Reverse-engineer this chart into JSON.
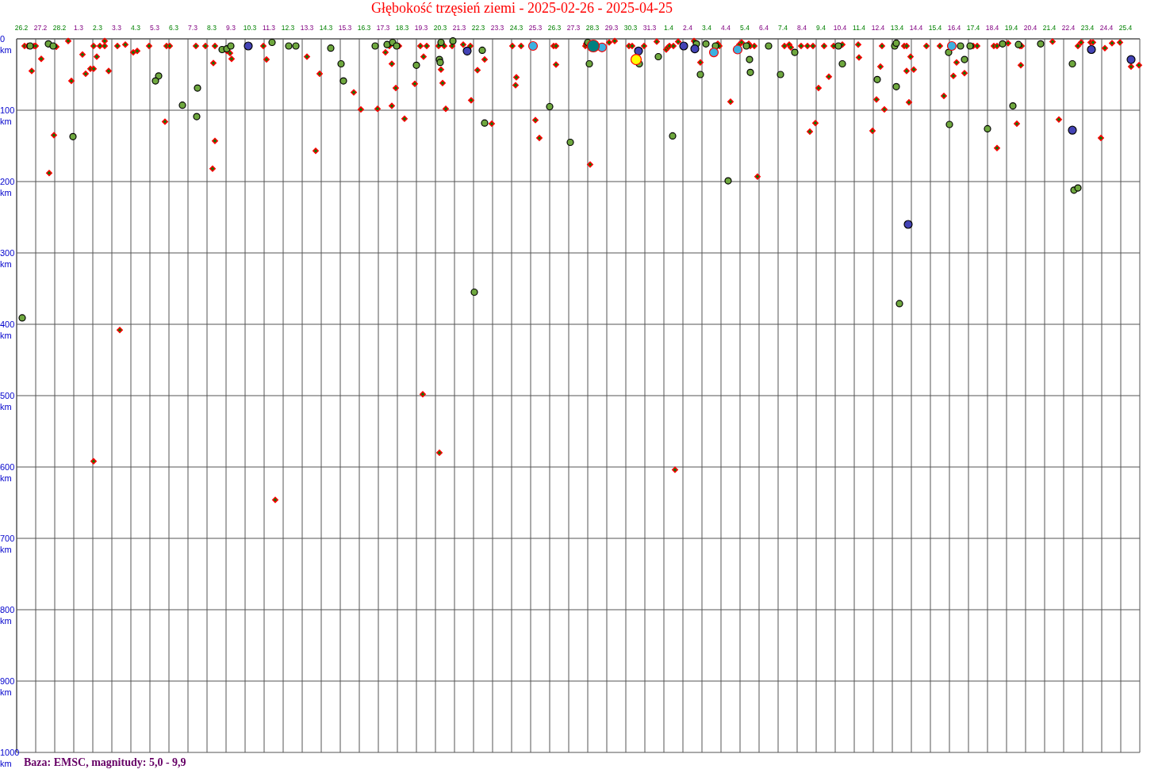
{
  "chart_data": {
    "type": "scatter",
    "title": "Głębokość trzęsień ziemi - 2025-02-26 - 2025-04-25",
    "annotations": [
      "Baza: EMSC, magnitudy: 5,0 - 9,9"
    ],
    "grid": true,
    "xlim": [
      "2025-02-26",
      "2025-04-26"
    ],
    "xticks": [
      {
        "value": "2025-02-26",
        "label": null
      },
      {
        "value": "2025-02-26T06:00",
        "label": "26.2"
      },
      {
        "value": "2025-02-27",
        "label": null
      },
      {
        "value": "2025-02-27T06:00",
        "label": "27.2"
      },
      {
        "value": "2025-02-28",
        "label": null
      },
      {
        "value": "2025-02-28T06:00",
        "label": "28.2"
      },
      {
        "value": "2025-03-01",
        "label": null
      },
      {
        "value": "2025-03-01T06:00",
        "label": "1.3"
      },
      {
        "value": "2025-03-02",
        "label": null
      },
      {
        "value": "2025-03-02T06:00",
        "label": "2.3"
      },
      {
        "value": "2025-03-03",
        "label": null
      },
      {
        "value": "2025-03-03T06:00",
        "label": "3.3"
      },
      {
        "value": "2025-03-04",
        "label": null
      },
      {
        "value": "2025-03-04T06:00",
        "label": "4.3"
      },
      {
        "value": "2025-03-05",
        "label": null
      },
      {
        "value": "2025-03-05T06:00",
        "label": "5.3"
      },
      {
        "value": "2025-03-06",
        "label": null
      },
      {
        "value": "2025-03-06T06:00",
        "label": "6.3"
      },
      {
        "value": "2025-03-07",
        "label": null
      },
      {
        "value": "2025-03-07T06:00",
        "label": "7.3"
      },
      {
        "value": "2025-03-08",
        "label": null
      },
      {
        "value": "2025-03-08T06:00",
        "label": "8.3"
      },
      {
        "value": "2025-03-09",
        "label": null
      },
      {
        "value": "2025-03-09T06:00",
        "label": "9.3"
      },
      {
        "value": "2025-03-10",
        "label": null
      },
      {
        "value": "2025-03-10T06:00",
        "label": "10.3"
      },
      {
        "value": "2025-03-11",
        "label": null
      },
      {
        "value": "2025-03-11T06:00",
        "label": "11.3"
      },
      {
        "value": "2025-03-12",
        "label": null
      },
      {
        "value": "2025-03-12T06:00",
        "label": "12.3"
      },
      {
        "value": "2025-03-13",
        "label": null
      },
      {
        "value": "2025-03-13T06:00",
        "label": "13.3"
      },
      {
        "value": "2025-03-14",
        "label": null
      },
      {
        "value": "2025-03-14T06:00",
        "label": "14.3"
      },
      {
        "value": "2025-03-15",
        "label": null
      },
      {
        "value": "2025-03-15T06:00",
        "label": "15.3"
      },
      {
        "value": "2025-03-16",
        "label": null
      },
      {
        "value": "2025-03-16T06:00",
        "label": "16.3"
      },
      {
        "value": "2025-03-17",
        "label": null
      },
      {
        "value": "2025-03-17T06:00",
        "label": "17.3"
      },
      {
        "value": "2025-03-18",
        "label": null
      },
      {
        "value": "2025-03-18T06:00",
        "label": "18.3"
      },
      {
        "value": "2025-03-19",
        "label": null
      },
      {
        "value": "2025-03-19T06:00",
        "label": "19.3"
      },
      {
        "value": "2025-03-20",
        "label": null
      },
      {
        "value": "2025-03-20T06:00",
        "label": "20.3"
      },
      {
        "value": "2025-03-21",
        "label": null
      },
      {
        "value": "2025-03-21T06:00",
        "label": "21.3"
      },
      {
        "value": "2025-03-22",
        "label": null
      },
      {
        "value": "2025-03-22T06:00",
        "label": "22.3"
      },
      {
        "value": "2025-03-23",
        "label": null
      },
      {
        "value": "2025-03-23T06:00",
        "label": "23.3"
      },
      {
        "value": "2025-03-24",
        "label": null
      },
      {
        "value": "2025-03-24T06:00",
        "label": "24.3"
      },
      {
        "value": "2025-03-25",
        "label": null
      },
      {
        "value": "2025-03-25T06:00",
        "label": "25.3"
      },
      {
        "value": "2025-03-26",
        "label": null
      },
      {
        "value": "2025-03-26T06:00",
        "label": "26.3"
      },
      {
        "value": "2025-03-27",
        "label": null
      },
      {
        "value": "2025-03-27T06:00",
        "label": "27.3"
      },
      {
        "value": "2025-03-28",
        "label": null
      },
      {
        "value": "2025-03-28T06:00",
        "label": "28.3"
      },
      {
        "value": "2025-03-29",
        "label": null
      },
      {
        "value": "2025-03-29T06:00",
        "label": "29.3"
      },
      {
        "value": "2025-03-30",
        "label": null
      },
      {
        "value": "2025-03-30T06:00",
        "label": "30.3"
      },
      {
        "value": "2025-03-31",
        "label": null
      },
      {
        "value": "2025-03-31T06:00",
        "label": "31.3"
      },
      {
        "value": "2025-04-01",
        "label": null
      },
      {
        "value": "2025-04-01T06:00",
        "label": "1.4"
      },
      {
        "value": "2025-04-02",
        "label": null
      },
      {
        "value": "2025-04-02T06:00",
        "label": "2.4"
      },
      {
        "value": "2025-04-03",
        "label": null
      },
      {
        "value": "2025-04-03T06:00",
        "label": "3.4"
      },
      {
        "value": "2025-04-04",
        "label": null
      },
      {
        "value": "2025-04-04T06:00",
        "label": "4.4"
      },
      {
        "value": "2025-04-05",
        "label": null
      },
      {
        "value": "2025-04-05T06:00",
        "label": "5.4"
      },
      {
        "value": "2025-04-06",
        "label": null
      },
      {
        "value": "2025-04-06T06:00",
        "label": "6.4"
      },
      {
        "value": "2025-04-07",
        "label": null
      },
      {
        "value": "2025-04-07T06:00",
        "label": "7.4"
      },
      {
        "value": "2025-04-08",
        "label": null
      },
      {
        "value": "2025-04-08T06:00",
        "label": "8.4"
      },
      {
        "value": "2025-04-09",
        "label": null
      },
      {
        "value": "2025-04-09T06:00",
        "label": "9.4"
      },
      {
        "value": "2025-04-10",
        "label": null
      },
      {
        "value": "2025-04-10T06:00",
        "label": "10.4"
      },
      {
        "value": "2025-04-11",
        "label": null
      },
      {
        "value": "2025-04-11T06:00",
        "label": "11.4"
      },
      {
        "value": "2025-04-12",
        "label": null
      },
      {
        "value": "2025-04-12T06:00",
        "label": "12.4"
      },
      {
        "value": "2025-04-13",
        "label": null
      },
      {
        "value": "2025-04-13T06:00",
        "label": "13.4"
      },
      {
        "value": "2025-04-14",
        "label": null
      },
      {
        "value": "2025-04-14T06:00",
        "label": "14.4"
      },
      {
        "value": "2025-04-15",
        "label": null
      },
      {
        "value": "2025-04-15T06:00",
        "label": "15.4"
      },
      {
        "value": "2025-04-16",
        "label": null
      },
      {
        "value": "2025-04-16T06:00",
        "label": "16.4"
      },
      {
        "value": "2025-04-17",
        "label": null
      },
      {
        "value": "2025-04-17T06:00",
        "label": "17.4"
      },
      {
        "value": "2025-04-18",
        "label": null
      },
      {
        "value": "2025-04-18T06:00",
        "label": "18.4"
      },
      {
        "value": "2025-04-19",
        "label": null
      },
      {
        "value": "2025-04-19T06:00",
        "label": "19.4"
      },
      {
        "value": "2025-04-20",
        "label": null
      },
      {
        "value": "2025-04-20T06:00",
        "label": "20.4"
      },
      {
        "value": "2025-04-21",
        "label": null
      },
      {
        "value": "2025-04-21T06:00",
        "label": "21.4"
      },
      {
        "value": "2025-04-22",
        "label": null
      },
      {
        "value": "2025-04-22T06:00",
        "label": "22.4"
      },
      {
        "value": "2025-04-23",
        "label": null
      },
      {
        "value": "2025-04-23T06:00",
        "label": "23.4"
      },
      {
        "value": "2025-04-24",
        "label": null
      },
      {
        "value": "2025-04-24T06:00",
        "label": "24.4"
      },
      {
        "value": "2025-04-25",
        "label": null
      },
      {
        "value": "2025-04-25T06:00",
        "label": "25.4"
      },
      {
        "value": "2025-04-26",
        "label": null
      }
    ],
    "ylim": [
      1000,
      0
    ],
    "yticks": [
      {
        "value": 0,
        "label": "0 km"
      },
      {
        "value": 100,
        "label": "100 km"
      },
      {
        "value": 200,
        "label": "200 km"
      },
      {
        "value": 300,
        "label": "300 km"
      },
      {
        "value": 400,
        "label": "400 km"
      },
      {
        "value": 500,
        "label": "500 km"
      },
      {
        "value": 600,
        "label": "600 km"
      },
      {
        "value": 700,
        "label": "700 km"
      },
      {
        "value": 800,
        "label": "800 km"
      },
      {
        "value": 900,
        "label": "900 km"
      },
      {
        "value": 1000,
        "label": "1000 km"
      }
    ],
    "series": [
      {
        "color": "#008000",
        "marker": "diamond",
        "x": [
          "2025-02-26T10:00",
          "2025-02-26T14:00",
          "2025-02-26T22:00",
          "2025-02-27T00:00",
          "2025-02-26T19:00",
          "2025-02-27T07:00",
          "2025-02-28T02:00",
          "2025-02-27T23:00",
          "2025-02-27T17:00",
          "2025-02-28T17:00",
          "2025-02-28T21:00",
          "2025-03-01T11:00",
          "2025-03-01T15:00",
          "2025-03-01T21:00",
          "2025-03-02T01:00",
          "2025-03-02T01:00",
          "2025-03-02T05:00",
          "2025-03-02T09:00",
          "2025-03-02T15:00",
          "2025-03-02T15:00",
          "2025-03-02T20:00",
          "2025-03-02T01:00",
          "2025-03-03T07:00",
          "2025-03-03T17:00",
          "2025-03-03T10:00",
          "2025-03-04T03:00",
          "2025-03-04T08:00",
          "2025-03-04T23:00",
          "2025-03-05T19:00",
          "2025-03-05T21:00",
          "2025-03-06T01:00",
          "2025-03-07T10:00",
          "2025-03-07T22:00",
          "2025-03-08T10:00",
          "2025-03-08T08:00",
          "2025-03-08T10:00",
          "2025-03-08T07:00",
          "2025-03-09T01:00",
          "2025-03-09T05:00",
          "2025-03-09T07:00",
          "2025-03-10T23:00",
          "2025-03-11T03:00",
          "2025-03-11T14:00",
          "2025-03-13T06:00",
          "2025-03-13T17:00",
          "2025-03-13T22:00",
          "2025-03-15T17:00",
          "2025-03-16T02:00",
          "2025-03-16T23:00",
          "2025-03-17T14:00",
          "2025-03-17T09:00",
          "2025-03-17T17:00",
          "2025-03-17T17:00",
          "2025-03-18T02:00",
          "2025-03-17T22:00",
          "2025-03-18T09:00",
          "2025-03-19T05:00",
          "2025-03-19T13:00",
          "2025-03-19T09:00",
          "2025-03-18T22:00",
          "2025-03-19T08:00",
          "2025-03-20T04:00",
          "2025-03-20T11:00",
          "2025-03-20T07:00",
          "2025-03-20T09:00",
          "2025-03-20T13:00",
          "2025-03-20T05:00",
          "2025-03-20T21:00",
          "2025-03-21T11:00",
          "2025-03-21T20:00",
          "2025-03-21T21:00",
          "2025-03-22T14:00",
          "2025-03-22T05:00",
          "2025-03-22T23:00",
          "2025-03-24T01:00",
          "2025-03-24T12:00",
          "2025-03-24T06:00",
          "2025-03-24T05:00",
          "2025-03-25T06:00",
          "2025-03-25T11:00",
          "2025-03-26T05:00",
          "2025-03-26T08:00",
          "2025-03-26T08:00",
          "2025-03-27T21:00",
          "2025-03-27T22:00",
          "2025-03-28T03:00",
          "2025-03-29T03:00",
          "2025-03-29T10:00",
          "2025-03-30T04:00",
          "2025-03-30T08:00",
          "2025-03-30T23:00",
          "2025-03-31T15:00",
          "2025-04-01T03:00",
          "2025-04-01T05:00",
          "2025-04-01T07:00",
          "2025-04-01T12:00",
          "2025-04-01T14:00",
          "2025-04-01T18:00",
          "2025-04-02T14:00",
          "2025-04-02T22:00",
          "2025-04-03T20:00",
          "2025-04-03T22:00",
          "2025-04-04T12:00",
          "2025-04-04T23:00",
          "2025-04-05T02:00",
          "2025-04-05T11:00",
          "2025-04-05T13:00",
          "2025-04-05T18:00",
          "2025-04-05T22:00",
          "2025-04-07T08:00",
          "2025-04-07T14:00",
          "2025-04-07T16:00",
          "2025-04-08T05:00",
          "2025-04-08T13:00",
          "2025-04-08T20:00",
          "2025-04-08T16:00",
          "2025-04-08T23:00",
          "2025-04-09T03:00",
          "2025-04-09T10:00",
          "2025-04-09T16:00",
          "2025-04-09T22:00",
          "2025-04-10T06:00",
          "2025-04-10T09:00",
          "2025-04-11T05:00",
          "2025-04-11T06:00",
          "2025-04-11T23:00",
          "2025-04-12T04:00",
          "2025-04-12T09:00",
          "2025-04-12T11:00",
          "2025-04-12T14:00",
          "2025-04-13T15:00",
          "2025-04-13T18:00",
          "2025-04-13T18:00",
          "2025-04-13T21:00",
          "2025-04-13T23:00",
          "2025-04-14T03:00",
          "2025-04-14T19:00",
          "2025-04-15T12:00",
          "2025-04-15T17:00",
          "2025-04-16T05:00",
          "2025-04-16T09:00",
          "2025-04-16T19:00",
          "2025-04-17T06:00",
          "2025-04-17T11:00",
          "2025-04-18T08:00",
          "2025-04-18T12:00",
          "2025-04-18T12:00",
          "2025-04-19T02:00",
          "2025-04-19T13:00",
          "2025-04-19T17:00",
          "2025-04-19T19:00",
          "2025-04-19T18:00",
          "2025-04-21T10:00",
          "2025-04-21T18:00",
          "2025-04-22T18:00",
          "2025-04-22T22:00",
          "2025-04-23T10:00",
          "2025-04-23T13:00",
          "2025-04-24T04:00",
          "2025-04-24T13:00",
          "2025-04-24T23:00",
          "2025-04-23T23:00",
          "2025-04-25T13:00",
          "2025-04-25T23:00"
        ],
        "values": [
          10,
          10,
          10,
          10,
          45,
          28,
          11,
          135,
          188,
          3,
          59,
          22,
          49,
          42,
          42,
          10,
          25,
          10,
          3,
          10,
          45,
          592,
          10,
          8,
          408,
          19,
          17,
          10,
          116,
          10,
          10,
          10,
          10,
          10,
          34,
          143,
          182,
          17,
          20,
          28,
          10,
          29,
          646,
          25,
          157,
          49,
          75,
          99,
          98,
          10,
          19,
          35,
          94,
          10,
          69,
          112,
          10,
          10,
          25,
          63,
          498,
          10,
          10,
          43,
          62,
          98,
          580,
          10,
          8,
          10,
          86,
          29,
          44,
          119,
          10,
          10,
          54,
          65,
          114,
          139,
          10,
          10,
          36,
          10,
          7,
          176,
          5,
          3,
          10,
          10,
          10,
          4,
          15,
          12,
          10,
          10,
          604,
          4,
          3,
          33,
          7,
          10,
          88,
          8,
          5,
          7,
          10,
          10,
          193,
          10,
          8,
          12,
          10,
          10,
          10,
          130,
          118,
          69,
          10,
          53,
          10,
          10,
          8,
          8,
          26,
          129,
          85,
          39,
          10,
          99,
          10,
          10,
          45,
          89,
          25,
          43,
          10,
          10,
          80,
          52,
          33,
          48,
          10,
          10,
          10,
          10,
          153,
          6,
          119,
          10,
          10,
          37,
          4,
          113,
          10,
          5,
          5,
          5,
          13,
          6,
          5,
          139,
          39,
          37
        ]
      },
      {
        "color": "#6fa83f",
        "marker": "circle",
        "x": [
          "2025-02-26T07:00",
          "2025-02-26T17:00",
          "2025-02-27T16:00",
          "2025-02-27T22:00",
          "2025-02-28T23:00",
          "2025-03-05T11:00",
          "2025-03-05T07:00",
          "2025-03-06T17:00",
          "2025-03-07T12:00",
          "2025-03-07T11:00",
          "2025-03-08T19:00",
          "2025-03-09T01:00",
          "2025-03-09T06:00",
          "2025-03-11T10:00",
          "2025-03-12T07:00",
          "2025-03-12T16:00",
          "2025-03-14T12:00",
          "2025-03-15T01:00",
          "2025-03-15T04:00",
          "2025-03-16T20:00",
          "2025-03-17T11:00",
          "2025-03-17T18:00",
          "2025-03-17T23:00",
          "2025-03-19T00:00",
          "2025-03-20T07:00",
          "2025-03-20T05:00",
          "2025-03-20T06:00",
          "2025-03-20T22:00",
          "2025-03-22T01:00",
          "2025-03-22T11:00",
          "2025-03-22T14:00",
          "2025-03-26T00:00",
          "2025-03-27T02:00",
          "2025-03-28T00:00",
          "2025-03-28T02:00",
          "2025-03-30T17:00",
          "2025-03-31T17:00",
          "2025-04-01T11:00",
          "2025-04-02T17:00",
          "2025-04-02T22:00",
          "2025-04-03T05:00",
          "2025-04-03T17:00",
          "2025-04-04T09:00",
          "2025-04-05T08:00",
          "2025-04-05T12:00",
          "2025-04-05T13:00",
          "2025-04-06T12:00",
          "2025-04-07T03:00",
          "2025-04-07T21:00",
          "2025-04-10T04:00",
          "2025-04-10T09:00",
          "2025-04-12T05:00",
          "2025-04-13T03:00",
          "2025-04-13T05:00",
          "2025-04-13T05:00",
          "2025-04-13T09:00",
          "2025-04-15T23:00",
          "2025-04-16T00:00",
          "2025-04-16T14:00",
          "2025-04-16T19:00",
          "2025-04-17T02:00",
          "2025-04-18T00:00",
          "2025-04-18T19:00",
          "2025-04-19T08:00",
          "2025-04-19T15:00",
          "2025-04-20T19:00",
          "2025-04-22T11:00",
          "2025-04-22T13:00",
          "2025-04-22T18:00"
        ],
        "values": [
          391,
          10,
          7,
          10,
          137,
          52,
          59,
          93,
          69,
          109,
          15,
          14,
          10,
          5,
          10,
          10,
          13,
          35,
          59,
          10,
          8,
          5,
          10,
          37,
          5,
          29,
          33,
          3,
          355,
          16,
          118,
          95,
          145,
          5,
          35,
          35,
          25,
          136,
          7,
          50,
          7,
          10,
          199,
          10,
          29,
          47,
          10,
          50,
          19,
          10,
          35,
          57,
          10,
          6,
          67,
          371,
          19,
          120,
          10,
          29,
          10,
          126,
          7,
          94,
          8,
          7,
          35,
          212,
          209
        ]
      },
      {
        "color": "#4343b5",
        "marker": "circle",
        "x": [
          "2025-03-10T04:00",
          "2025-03-21T16:00",
          "2025-03-30T16:00",
          "2025-04-02T01:00",
          "2025-04-02T15:00",
          "2025-04-13T20:00",
          "2025-04-22T11:00",
          "2025-04-23T11:00",
          "2025-04-25T13:00"
        ],
        "values": [
          10,
          17,
          17,
          10,
          14,
          260,
          128,
          15,
          29
        ]
      },
      {
        "color": "#3cb0e0",
        "marker": "circle",
        "x": [
          "2025-03-25T03:00",
          "2025-03-28T18:00",
          "2025-04-03T15:00",
          "2025-04-04T21:00",
          "2025-04-16T03:00"
        ],
        "values": [
          10,
          12,
          19,
          15,
          10
        ]
      },
      {
        "color": "#008080",
        "marker": "circle",
        "x": [
          "2025-03-28T07:00"
        ],
        "values": [
          10
        ]
      },
      {
        "color": "#ffff00",
        "marker": "circle",
        "x": [
          "2025-03-30T13:00"
        ],
        "values": [
          29
        ]
      }
    ]
  }
}
